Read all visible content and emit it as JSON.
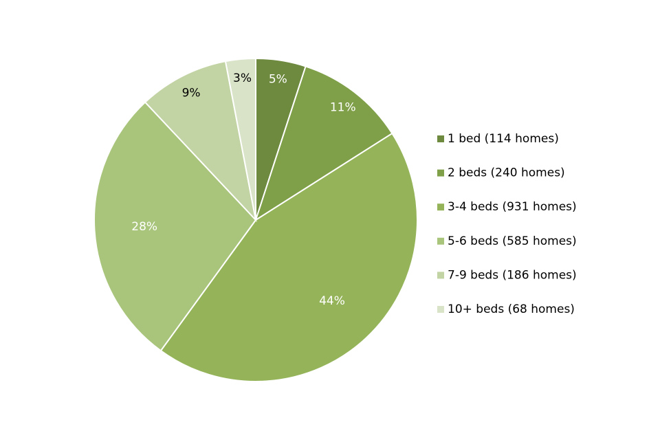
{
  "chart_data": {
    "type": "pie",
    "categories": [
      "1 bed (114 homes)",
      "2 beds (240 homes)",
      "3-4 beds (931 homes)",
      "5-6 beds (585 homes)",
      "7-9 beds (186 homes)",
      "10+ beds (68 homes)"
    ],
    "values": [
      5,
      11,
      44,
      28,
      9,
      3
    ],
    "value_labels": [
      "5%",
      "11%",
      "44%",
      "28%",
      "9%",
      "3%"
    ],
    "colors": [
      "#6e8a3e",
      "#7fa048",
      "#95b45a",
      "#a9c57c",
      "#c2d3a4",
      "#d9e3c8"
    ],
    "label_colors": [
      "#ffffff",
      "#ffffff",
      "#ffffff",
      "#ffffff",
      "#000000",
      "#000000"
    ],
    "legend": "right"
  }
}
